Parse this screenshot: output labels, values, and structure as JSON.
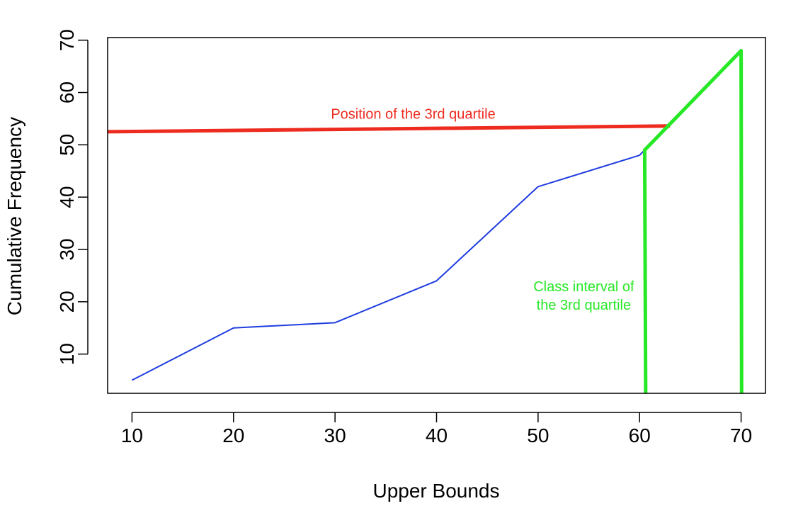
{
  "chart_data": {
    "type": "line",
    "title": "",
    "xlabel": "Upper Bounds",
    "ylabel": "Cumulative Frequency",
    "xlim": [
      7.6,
      72.4
    ],
    "ylim": [
      2.5,
      70.5
    ],
    "x_ticks": [
      10,
      20,
      30,
      40,
      50,
      60,
      70
    ],
    "y_ticks": [
      10,
      20,
      30,
      40,
      50,
      60,
      70
    ],
    "series": [
      {
        "color": "#1f3de0",
        "points": [
          [
            10,
            5
          ],
          [
            20,
            15
          ],
          [
            30,
            16
          ],
          [
            40,
            24
          ],
          [
            50,
            42
          ],
          [
            60,
            48
          ],
          [
            60.5,
            49
          ],
          [
            70,
            68
          ]
        ]
      }
    ],
    "annotations": [
      {
        "kind": "line",
        "color": "#ee2b1f",
        "from": [
          7.6,
          52.5
        ],
        "to": [
          63,
          53.6
        ]
      },
      {
        "kind": "polyline",
        "color": "#27e826",
        "points": [
          [
            60.6,
            2.5
          ],
          [
            60.5,
            49
          ],
          [
            70,
            68
          ],
          [
            70.05,
            2.5
          ]
        ]
      },
      {
        "kind": "text",
        "color": "#ee2b1f",
        "lines": [
          "Position of the 3rd quartile"
        ],
        "at": [
          37.7,
          55
        ]
      },
      {
        "kind": "text",
        "color": "#27e826",
        "lines": [
          "Class interval of",
          "the 3rd quartile"
        ],
        "at": [
          54.5,
          22
        ]
      }
    ],
    "grid": false,
    "legend": "none"
  }
}
